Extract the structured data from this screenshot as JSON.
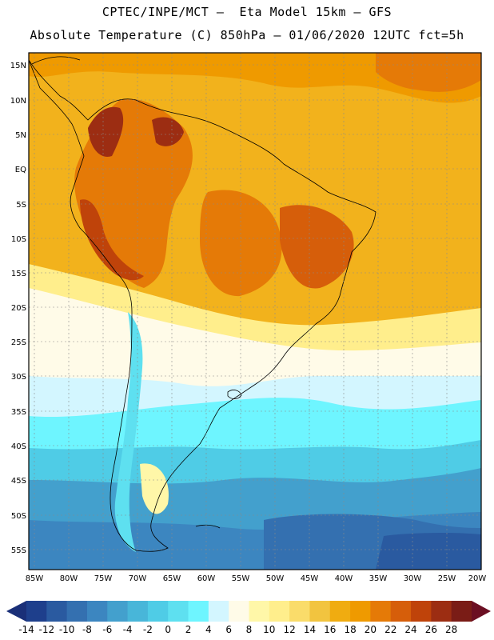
{
  "header": {
    "line1": "CPTEC/INPE/MCT –  Eta Model 15km – GFS",
    "line2": "Absolute Temperature (C) 850hPa – 01/06/2020 12UTC fct=5h"
  },
  "axes": {
    "lat_labels": [
      "15N",
      "10N",
      "5N",
      "EQ",
      "5S",
      "10S",
      "15S",
      "20S",
      "25S",
      "30S",
      "35S",
      "40S",
      "45S",
      "50S",
      "55S"
    ],
    "lon_labels": [
      "85W",
      "80W",
      "75W",
      "70W",
      "65W",
      "60W",
      "55W",
      "50W",
      "45W",
      "40W",
      "35W",
      "30W",
      "25W",
      "20W"
    ]
  },
  "colorbar": {
    "ticks": [
      "-14",
      "-12",
      "-10",
      "-8",
      "-6",
      "-4",
      "-2",
      "0",
      "2",
      "4",
      "6",
      "8",
      "10",
      "12",
      "14",
      "16",
      "18",
      "20",
      "22",
      "24",
      "26",
      "28"
    ],
    "colors": [
      "#1e3f8c",
      "#2a5aa0",
      "#3470b0",
      "#3c86c0",
      "#43a0cd",
      "#48b6d9",
      "#4fcce6",
      "#5ee0f0",
      "#6ef5ff",
      "#d3f6ff",
      "#fffbe8",
      "#fff7a8",
      "#ffee8c",
      "#fadc6a",
      "#f2c43f",
      "#f0ac10",
      "#ef9a00",
      "#e57a07",
      "#d65e0a",
      "#bf430a",
      "#9c2d12",
      "#7a1c16"
    ],
    "end_colors": {
      "low": "#1a2f78",
      "high": "#6b0f22"
    }
  },
  "legend_note": "colorbar at bottom"
}
